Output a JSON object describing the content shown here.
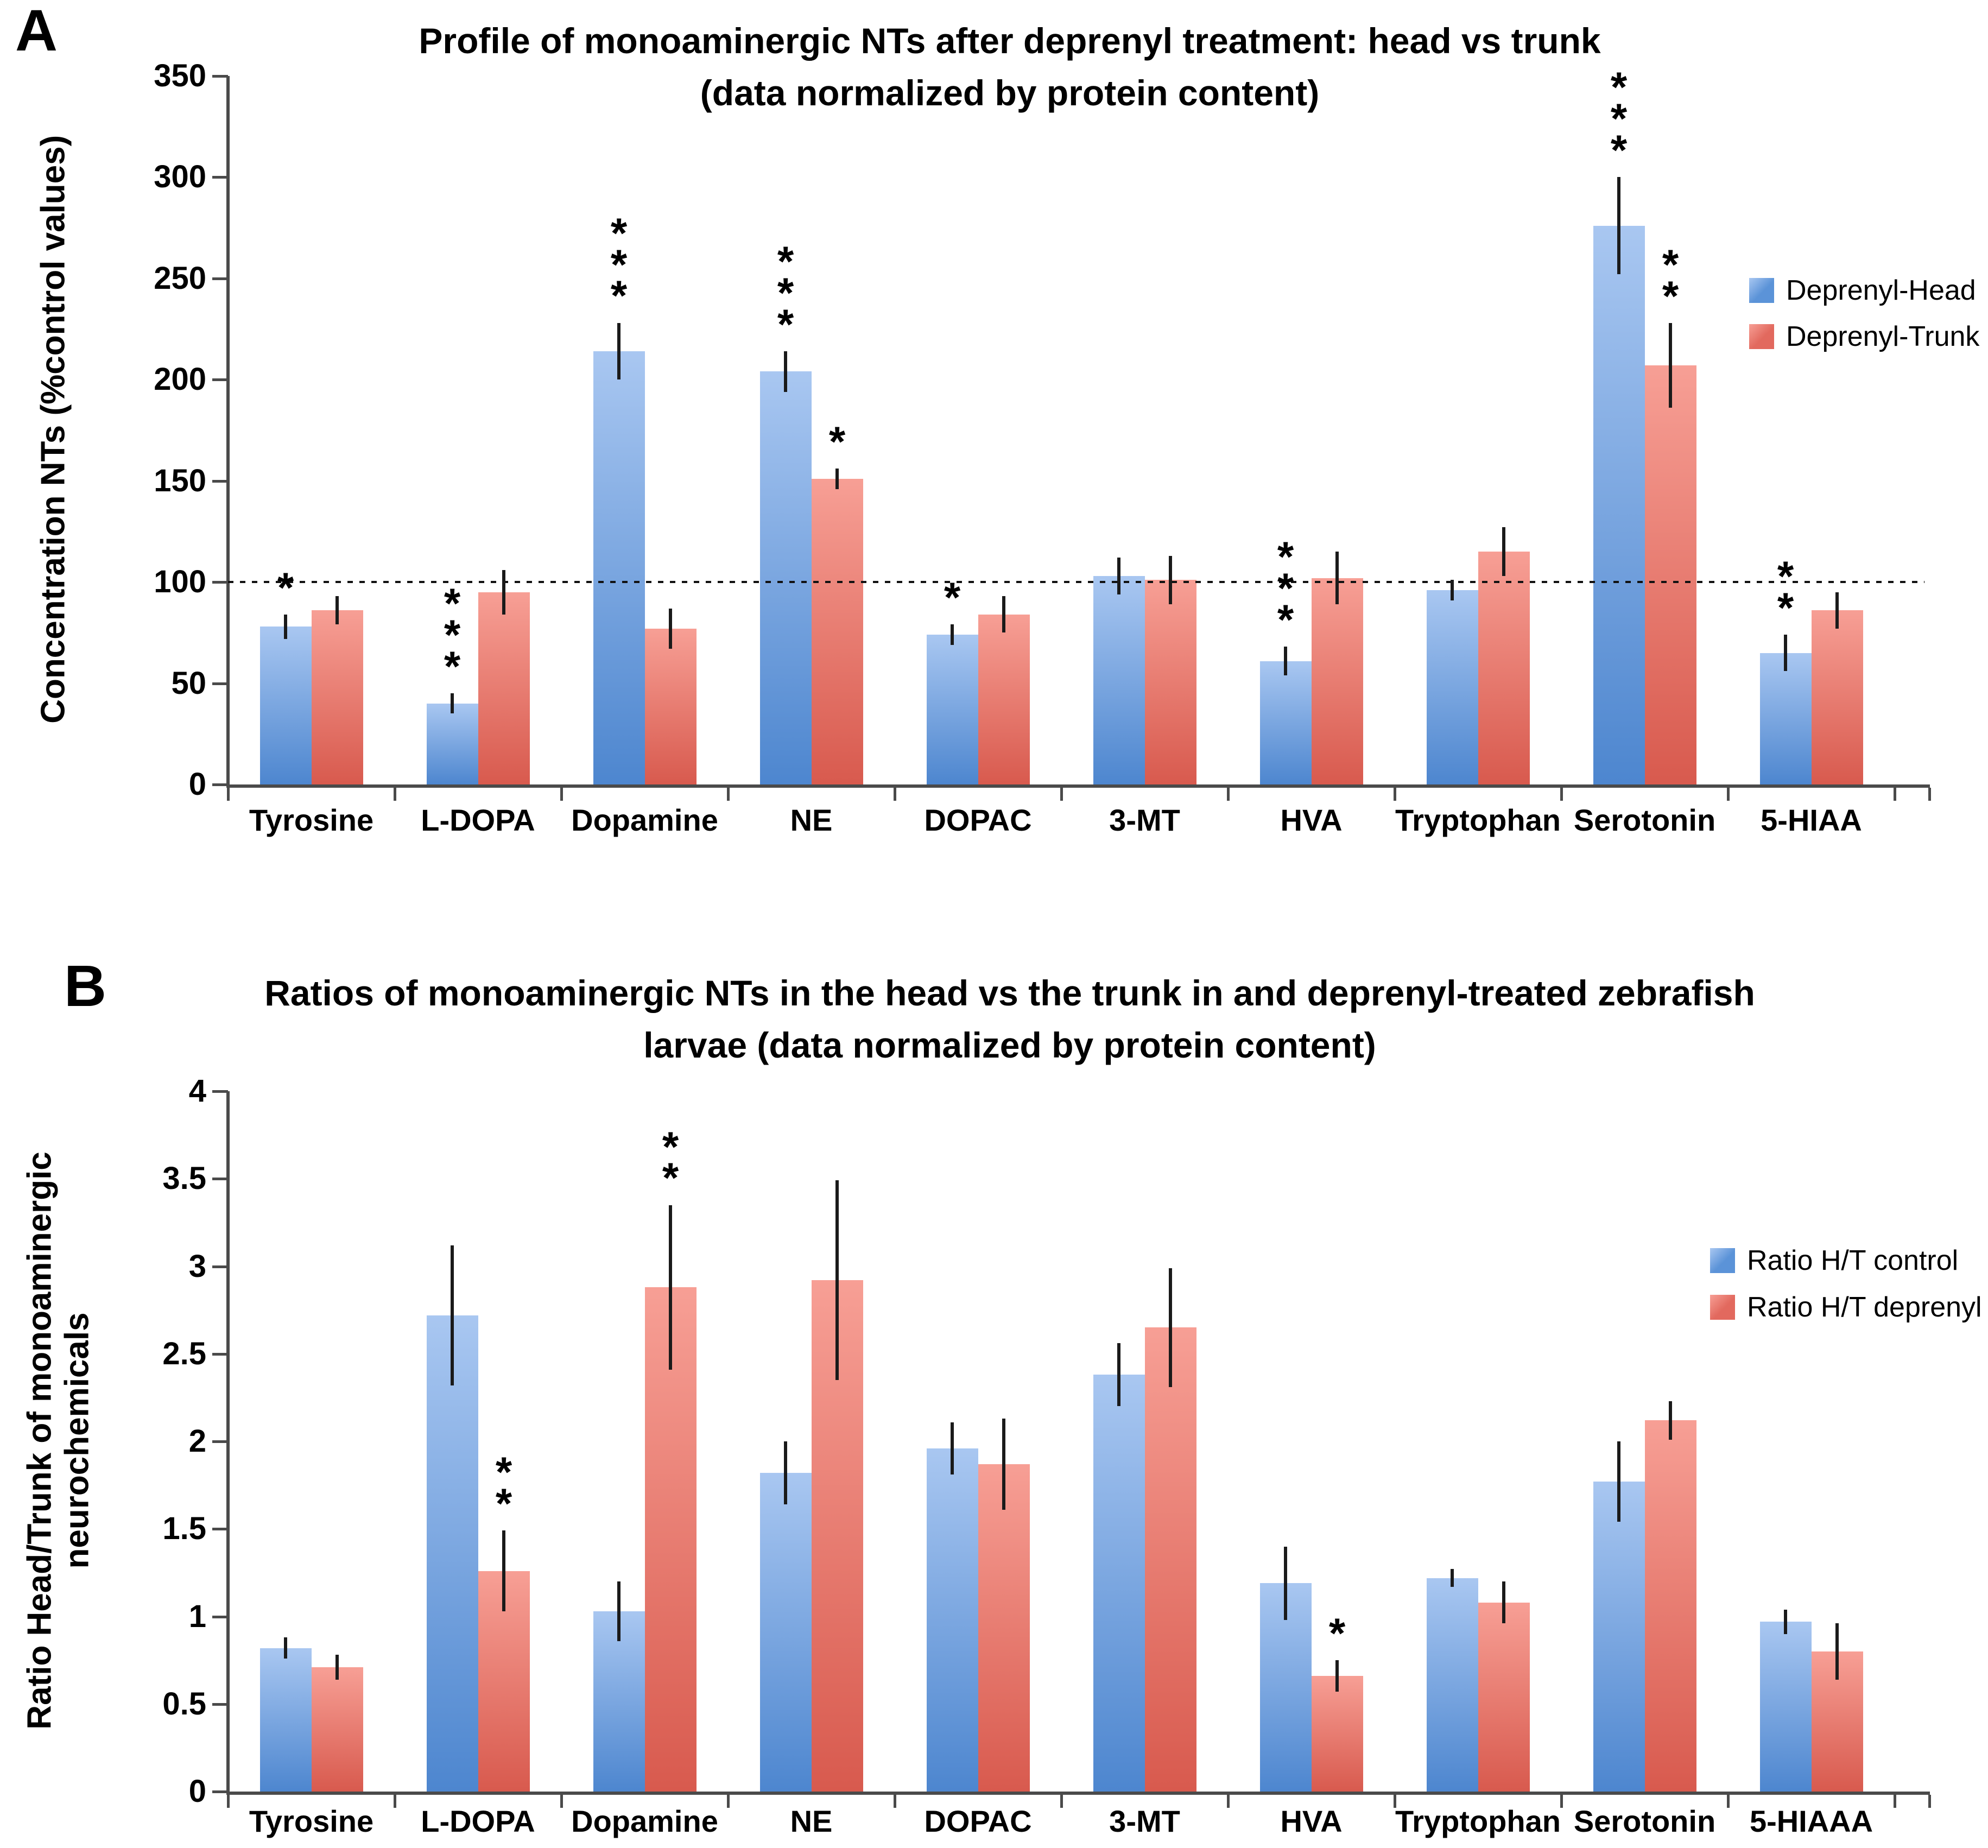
{
  "colors": {
    "bar_blue_top": "#a9c7f1",
    "bar_blue_bottom": "#4d86cf",
    "bar_red_top": "#f79f95",
    "bar_red_bottom": "#d85a4e",
    "legend_blue": "#5b93d8",
    "legend_red": "#e2695e",
    "axis": "#4a4a4a",
    "refline": "#111111"
  },
  "panels": [
    {
      "letter": "A",
      "title_line1": "Profile of monoaminergic NTs after deprenyl treatment: head vs trunk",
      "title_line2": "(data normalized by protein content)",
      "ylabel": "Concentration NTs (%control values)",
      "legend": [
        {
          "label": "Deprenyl-Head",
          "color_key": "legend_blue"
        },
        {
          "label": "Deprenyl-Trunk",
          "color_key": "legend_red"
        }
      ]
    },
    {
      "letter": "B",
      "title_line1": "Ratios of monoaminergic NTs in the head vs the trunk in and deprenyl-treated zebrafish",
      "title_line2": "larvae (data normalized by protein content)",
      "ylabel": "Ratio Head/Trunk of monoaminergic neurochemicals",
      "legend": [
        {
          "label": "Ratio H/T control",
          "color_key": "legend_blue"
        },
        {
          "label": "Ratio H/T deprenyl",
          "color_key": "legend_red"
        }
      ]
    }
  ],
  "chart_data": [
    {
      "type": "bar",
      "title": "Profile of monoaminergic NTs after deprenyl treatment: head vs trunk (data normalized by protein content)",
      "categories": [
        "Tyrosine",
        "L-DOPA",
        "Dopamine",
        "NE",
        "DOPAC",
        "3-MT",
        "HVA",
        "Tryptophan",
        "Serotonin",
        "5-HIAA"
      ],
      "series": [
        {
          "name": "Deprenyl-Head",
          "color_key": "blue",
          "values": [
            78,
            40,
            214,
            204,
            74,
            103,
            61,
            96,
            276,
            65
          ],
          "errors": [
            6,
            5,
            14,
            10,
            5,
            9,
            7,
            5,
            24,
            9
          ],
          "sig": [
            "*",
            "***",
            "***",
            "***",
            "*",
            "",
            "***",
            "",
            "***",
            "**"
          ]
        },
        {
          "name": "Deprenyl-Trunk",
          "color_key": "red",
          "values": [
            86,
            95,
            77,
            151,
            84,
            101,
            102,
            115,
            207,
            86
          ],
          "errors": [
            7,
            11,
            10,
            5,
            9,
            12,
            13,
            12,
            21,
            9
          ],
          "sig": [
            "",
            "",
            "",
            "*",
            "",
            "",
            "",
            "",
            "**",
            ""
          ]
        }
      ],
      "xlabel": "",
      "ylabel": "Concentration NTs (%control values)",
      "ylim": [
        0,
        350
      ],
      "ytick_step": 50,
      "refline": 100,
      "grid": false,
      "legend_position": "right",
      "error_bars": true
    },
    {
      "type": "bar",
      "title": "Ratios of monoaminergic NTs in the head vs the trunk in and deprenyl-treated zebrafish larvae (data normalized by protein content)",
      "categories": [
        "Tyrosine",
        "L-DOPA",
        "Dopamine",
        "NE",
        "DOPAC",
        "3-MT",
        "HVA",
        "Tryptophan",
        "Serotonin",
        "5-HIAAA"
      ],
      "series": [
        {
          "name": "Ratio H/T control",
          "color_key": "blue",
          "values": [
            0.82,
            2.72,
            1.03,
            1.82,
            1.96,
            2.38,
            1.19,
            1.22,
            1.77,
            0.97
          ],
          "errors": [
            0.06,
            0.4,
            0.17,
            0.18,
            0.15,
            0.18,
            0.21,
            0.05,
            0.23,
            0.07
          ],
          "sig": [
            "",
            "",
            "",
            "",
            "",
            "",
            "",
            "",
            "",
            ""
          ]
        },
        {
          "name": "Ratio H/T deprenyl",
          "color_key": "red",
          "values": [
            0.71,
            1.26,
            2.88,
            2.92,
            1.87,
            2.65,
            0.66,
            1.08,
            2.12,
            0.8
          ],
          "errors": [
            0.07,
            0.23,
            0.47,
            0.57,
            0.26,
            0.34,
            0.09,
            0.12,
            0.11,
            0.16
          ],
          "sig": [
            "",
            "**",
            "**",
            "",
            "",
            "",
            "*",
            "",
            "",
            ""
          ]
        }
      ],
      "xlabel": "",
      "ylabel": "Ratio Head/Trunk of monoaminergic neurochemicals",
      "ylim": [
        0,
        4
      ],
      "ytick_step": 0.5,
      "refline": null,
      "grid": false,
      "legend_position": "right",
      "error_bars": true
    }
  ]
}
